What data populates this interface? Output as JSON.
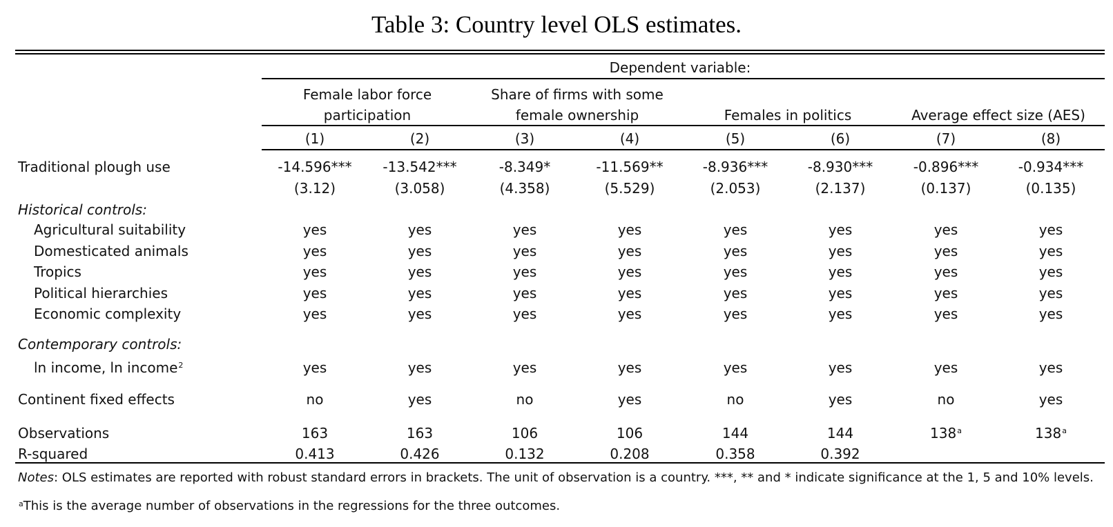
{
  "title": "Table 3: Country level OLS estimates.",
  "header": {
    "dependent": "Dependent variable:",
    "groups": [
      {
        "line1": "Female labor force",
        "line2": "participation"
      },
      {
        "line1": "Share of firms with some",
        "line2": "female ownership"
      },
      {
        "line1": "",
        "line2": "Females in politics"
      },
      {
        "line1": "",
        "line2": "Average effect size (AES)"
      }
    ],
    "columns": [
      "(1)",
      "(2)",
      "(3)",
      "(4)",
      "(5)",
      "(6)",
      "(7)",
      "(8)"
    ]
  },
  "rows": {
    "plough": {
      "label": "Traditional plough use",
      "coef": [
        "-14.596***",
        "-13.542***",
        "-8.349*",
        "-11.569**",
        "-8.936***",
        "-8.930***",
        "-0.896***",
        "-0.934***"
      ],
      "se": [
        "(3.12)",
        "(3.058)",
        "(4.358)",
        "(5.529)",
        "(2.053)",
        "(2.137)",
        "(0.137)",
        "(0.135)"
      ]
    },
    "historical_heading": "Historical controls:",
    "historical": [
      {
        "label": "Agricultural suitability",
        "values": [
          "yes",
          "yes",
          "yes",
          "yes",
          "yes",
          "yes",
          "yes",
          "yes"
        ]
      },
      {
        "label": "Domesticated animals",
        "values": [
          "yes",
          "yes",
          "yes",
          "yes",
          "yes",
          "yes",
          "yes",
          "yes"
        ]
      },
      {
        "label": "Tropics",
        "values": [
          "yes",
          "yes",
          "yes",
          "yes",
          "yes",
          "yes",
          "yes",
          "yes"
        ]
      },
      {
        "label": "Political hierarchies",
        "values": [
          "yes",
          "yes",
          "yes",
          "yes",
          "yes",
          "yes",
          "yes",
          "yes"
        ]
      },
      {
        "label": "Economic complexity",
        "values": [
          "yes",
          "yes",
          "yes",
          "yes",
          "yes",
          "yes",
          "yes",
          "yes"
        ]
      }
    ],
    "contemporary_heading": "Contemporary controls:",
    "income": {
      "label": "ln income, ln income",
      "label_sup": "2",
      "values": [
        "yes",
        "yes",
        "yes",
        "yes",
        "yes",
        "yes",
        "yes",
        "yes"
      ]
    },
    "continent": {
      "label": "Continent fixed effects",
      "values": [
        "no",
        "yes",
        "no",
        "yes",
        "no",
        "yes",
        "no",
        "yes"
      ]
    },
    "observations": {
      "label": "Observations",
      "values": [
        "163",
        "163",
        "106",
        "106",
        "144",
        "144",
        "138",
        "138"
      ],
      "sups": [
        "",
        "",
        "",
        "",
        "",
        "",
        "a",
        "a"
      ]
    },
    "rsquared": {
      "label": "R-squared",
      "values": [
        "0.413",
        "0.426",
        "0.132",
        "0.208",
        "0.358",
        "0.392",
        "",
        ""
      ]
    }
  },
  "notes": {
    "notes_label": "Notes",
    "notes_text": ": OLS estimates are reported with robust standard errors in brackets. The unit of observation is a country. ***, ** and * indicate significance at the 1, 5 and 10% levels.",
    "footnote_mark": "a",
    "footnote_text": "This is the average number of observations in the regressions for the three outcomes."
  }
}
